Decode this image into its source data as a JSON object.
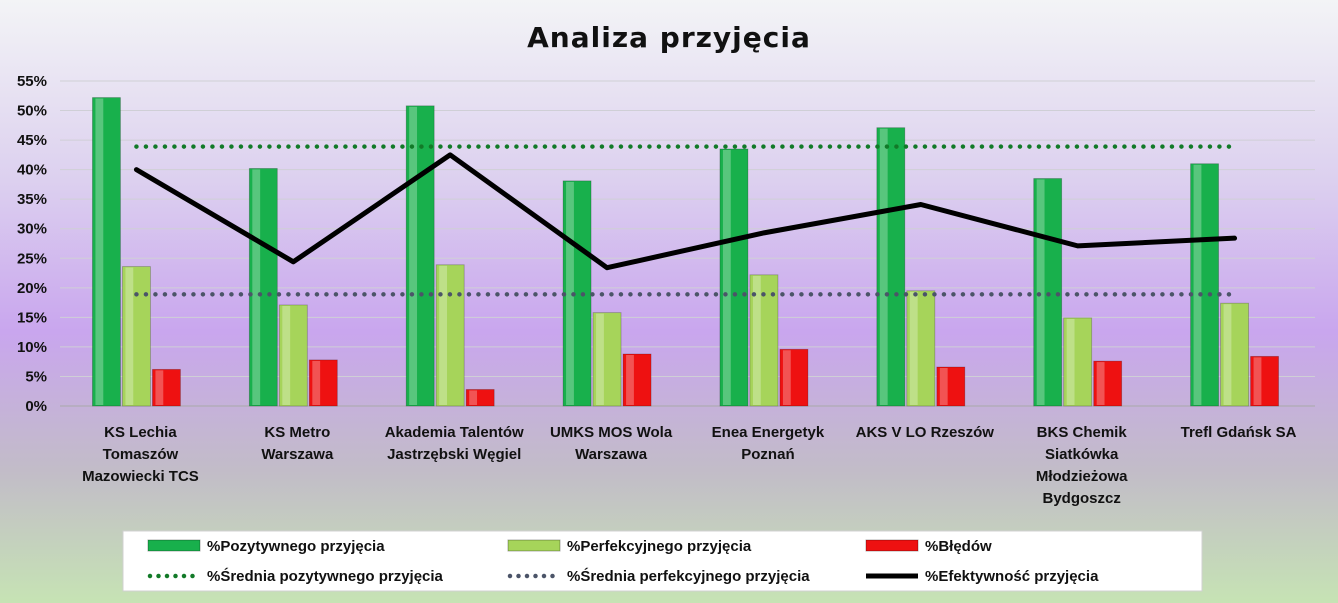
{
  "chart_data": {
    "type": "bar",
    "title": "Analiza przyjęcia",
    "categories": [
      [
        "KS Lechia",
        "Tomaszów",
        "Mazowiecki TCS"
      ],
      [
        "KS Metro",
        "Warszawa"
      ],
      [
        "Akademia Talentów",
        "Jastrzębski Węgiel"
      ],
      [
        "UMKS MOS Wola",
        "Warszawa"
      ],
      [
        "Enea Energetyk",
        "Poznań"
      ],
      [
        "AKS V LO Rzeszów"
      ],
      [
        "BKS Chemik",
        "Siatkówka",
        "Młodzieżowa",
        "Bydgoszcz"
      ],
      [
        "Trefl Gdańsk SA"
      ]
    ],
    "ylim": [
      0,
      55
    ],
    "yticks": [
      "0%",
      "5%",
      "10%",
      "15%",
      "20%",
      "25%",
      "30%",
      "35%",
      "40%",
      "45%",
      "50%",
      "55%"
    ],
    "grid": true,
    "legend_position": "bottom",
    "series": [
      {
        "name": "%Pozytywnego przyjęcia",
        "kind": "bar",
        "color": "#18b04c",
        "values": [
          52.2,
          40.2,
          50.8,
          38.1,
          43.5,
          47.1,
          38.5,
          41.0
        ]
      },
      {
        "name": "%Perfekcyjnego przyjęcia",
        "kind": "bar",
        "color": "#a6d45a",
        "values": [
          23.6,
          17.1,
          23.9,
          15.8,
          22.2,
          19.5,
          14.9,
          17.4
        ]
      },
      {
        "name": "%Błędów",
        "kind": "bar",
        "color": "#ee1111",
        "values": [
          6.2,
          7.8,
          2.8,
          8.8,
          9.6,
          6.6,
          7.6,
          8.4
        ]
      },
      {
        "name": "%Średnia pozytywnego przyjęcia",
        "kind": "dotted-line",
        "color": "#127a28",
        "values": [
          43.9,
          43.9,
          43.9,
          43.9,
          43.9,
          43.9,
          43.9,
          43.9
        ]
      },
      {
        "name": "%Średnia perfekcyjnego przyjęcia",
        "kind": "dotted-line",
        "color": "#4b5468",
        "values": [
          18.9,
          18.9,
          18.9,
          18.9,
          18.9,
          18.9,
          18.9,
          18.9
        ]
      },
      {
        "name": "%Efektywność przyjęcia",
        "kind": "line",
        "color": "#000000",
        "values": [
          40.0,
          24.4,
          42.5,
          23.4,
          29.3,
          34.1,
          27.1,
          28.4
        ]
      }
    ]
  }
}
